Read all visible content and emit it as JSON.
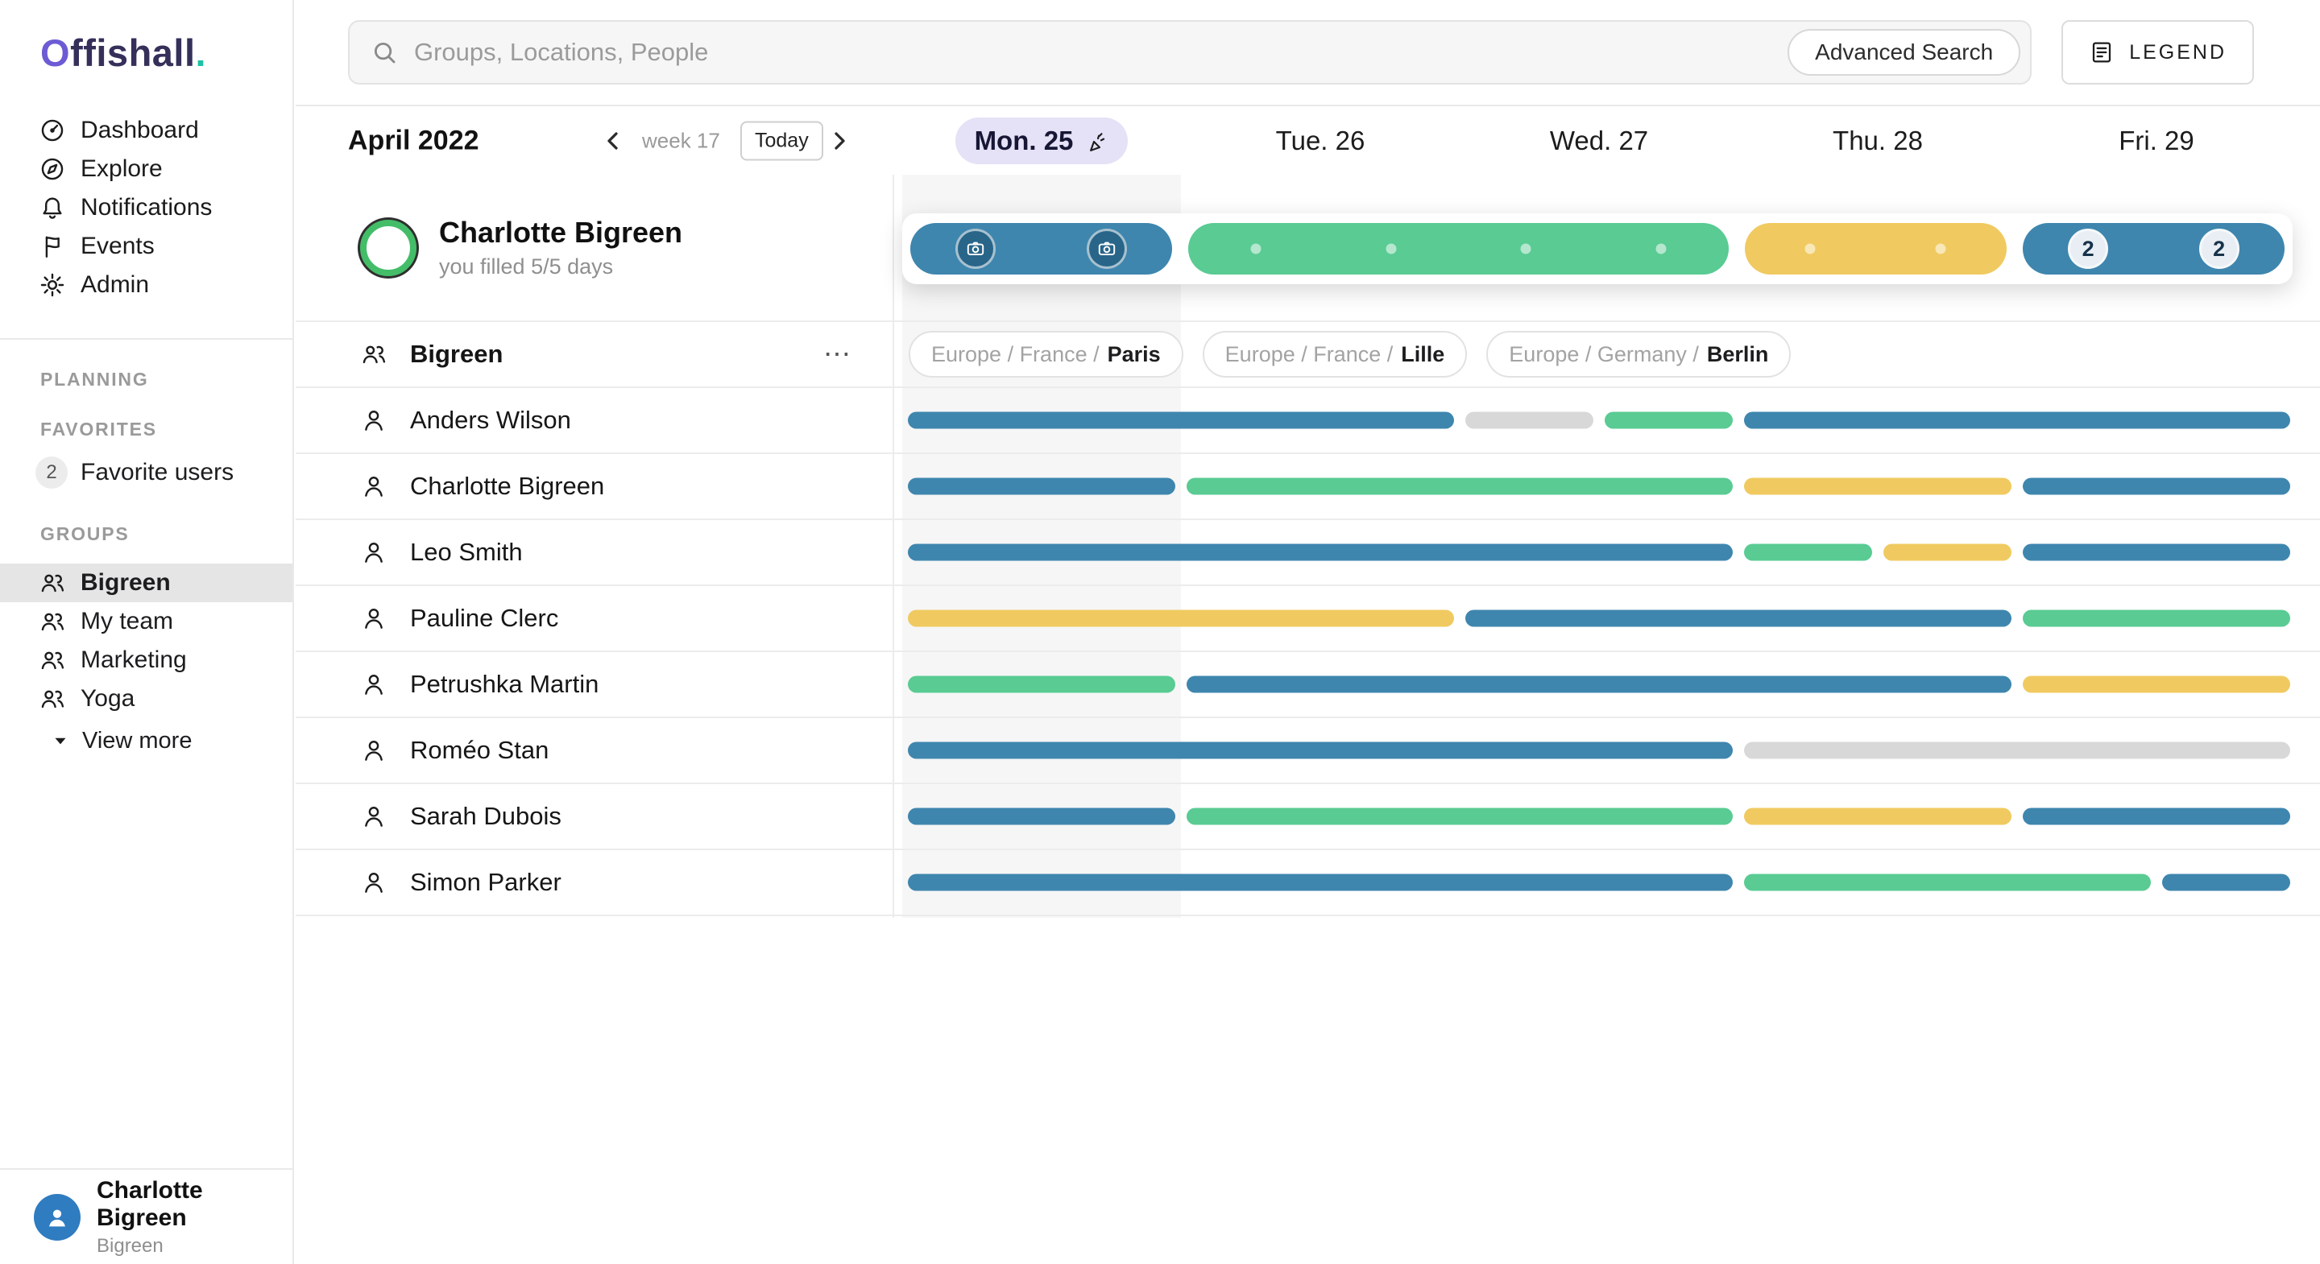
{
  "brand": {
    "initial": "O",
    "rest": "ffishall",
    "dot": "."
  },
  "colors": {
    "blue": "#3e86ae",
    "green": "#59cb93",
    "yellow": "#f0ca60",
    "gray": "#d8d8d8",
    "today_pill": "#e5e1f6"
  },
  "sidebar": {
    "nav": [
      {
        "label": "Dashboard",
        "icon": "dashboard-icon"
      },
      {
        "label": "Explore",
        "icon": "compass-icon"
      },
      {
        "label": "Notifications",
        "icon": "bell-icon"
      },
      {
        "label": "Events",
        "icon": "flag-icon"
      },
      {
        "label": "Admin",
        "icon": "gear-icon"
      }
    ],
    "sections": {
      "planning": "PLANNING",
      "favorites": "FAVORITES",
      "groups": "GROUPS"
    },
    "favorites": {
      "count": "2",
      "label": "Favorite users"
    },
    "groups": [
      {
        "label": "Bigreen",
        "selected": true
      },
      {
        "label": "My team",
        "selected": false
      },
      {
        "label": "Marketing",
        "selected": false
      },
      {
        "label": "Yoga",
        "selected": false
      }
    ],
    "view_more": "View more",
    "user": {
      "name": "Charlotte Bigreen",
      "team": "Bigreen"
    }
  },
  "header": {
    "search_placeholder": "Groups, Locations, People",
    "advanced_search": "Advanced Search",
    "legend": "LEGEND"
  },
  "toolbar": {
    "month": "April 2022",
    "week": "week 17",
    "today": "Today"
  },
  "days": [
    {
      "label": "Mon. 25",
      "today": true
    },
    {
      "label": "Tue. 26",
      "today": false
    },
    {
      "label": "Wed. 27",
      "today": false
    },
    {
      "label": "Thu. 28",
      "today": false
    },
    {
      "label": "Fri. 29",
      "today": false
    }
  ],
  "current_user": {
    "name": "Charlotte Bigreen",
    "subtitle": "you filled 5/5 days",
    "week": [
      {
        "start": 0,
        "span": 1,
        "color": "blue",
        "slot": "camera"
      },
      {
        "start": 1,
        "span": 2,
        "color": "green",
        "slot": "dot"
      },
      {
        "start": 3,
        "span": 1,
        "color": "yellow",
        "slot": "dot"
      },
      {
        "start": 4,
        "span": 1,
        "color": "blue",
        "slot": "badge",
        "badges": [
          "2",
          "2"
        ]
      }
    ]
  },
  "group_row": {
    "name": "Bigreen",
    "locations": [
      {
        "prefix": "Europe / France /",
        "city": "Paris"
      },
      {
        "prefix": "Europe / France /",
        "city": "Lille"
      },
      {
        "prefix": "Europe / Germany /",
        "city": "Berlin"
      }
    ]
  },
  "people": [
    {
      "name": "Anders Wilson",
      "segments": [
        {
          "start": 0,
          "span": 2,
          "color": "blue"
        },
        {
          "start": 2,
          "span": 0.5,
          "color": "gray"
        },
        {
          "start": 2.5,
          "span": 0.5,
          "color": "green"
        },
        {
          "start": 3,
          "span": 2,
          "color": "blue"
        }
      ]
    },
    {
      "name": "Charlotte Bigreen",
      "segments": [
        {
          "start": 0,
          "span": 1,
          "color": "blue"
        },
        {
          "start": 1,
          "span": 2,
          "color": "green"
        },
        {
          "start": 3,
          "span": 1,
          "color": "yellow"
        },
        {
          "start": 4,
          "span": 1,
          "color": "blue"
        }
      ]
    },
    {
      "name": "Leo Smith",
      "segments": [
        {
          "start": 0,
          "span": 3,
          "color": "blue"
        },
        {
          "start": 3,
          "span": 0.5,
          "color": "green"
        },
        {
          "start": 3.5,
          "span": 0.5,
          "color": "yellow"
        },
        {
          "start": 4,
          "span": 1,
          "color": "blue"
        }
      ]
    },
    {
      "name": "Pauline Clerc",
      "segments": [
        {
          "start": 0,
          "span": 2,
          "color": "yellow"
        },
        {
          "start": 2,
          "span": 2,
          "color": "blue"
        },
        {
          "start": 4,
          "span": 1,
          "color": "green"
        }
      ]
    },
    {
      "name": "Petrushka Martin",
      "segments": [
        {
          "start": 0,
          "span": 1,
          "color": "green"
        },
        {
          "start": 1,
          "span": 3,
          "color": "blue"
        },
        {
          "start": 4,
          "span": 1,
          "color": "yellow"
        }
      ]
    },
    {
      "name": "Roméo Stan",
      "segments": [
        {
          "start": 0,
          "span": 3,
          "color": "blue"
        },
        {
          "start": 3,
          "span": 2,
          "color": "gray"
        }
      ]
    },
    {
      "name": "Sarah Dubois",
      "segments": [
        {
          "start": 0,
          "span": 1,
          "color": "blue"
        },
        {
          "start": 1,
          "span": 2,
          "color": "green"
        },
        {
          "start": 3,
          "span": 1,
          "color": "yellow"
        },
        {
          "start": 4,
          "span": 1,
          "color": "blue"
        }
      ]
    },
    {
      "name": "Simon Parker",
      "segments": [
        {
          "start": 0,
          "span": 3,
          "color": "blue"
        },
        {
          "start": 3,
          "span": 1.5,
          "color": "green"
        },
        {
          "start": 4.5,
          "span": 0.5,
          "color": "blue"
        }
      ]
    }
  ]
}
